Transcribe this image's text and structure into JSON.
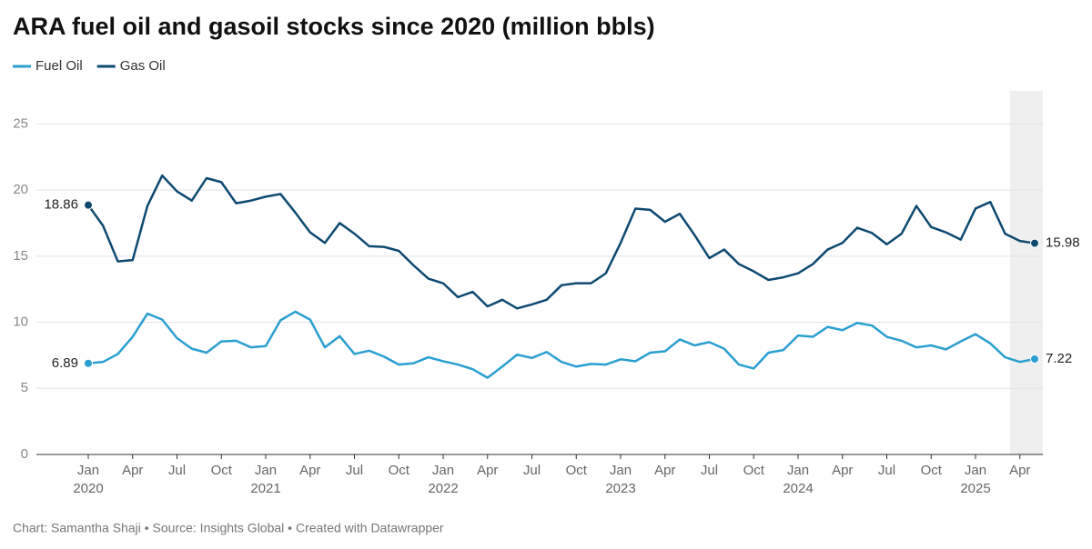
{
  "chart_data": {
    "type": "line",
    "title": "ARA fuel oil and gasoil stocks since 2020 (million bbls)",
    "footer": "Chart: Samantha Shaji • Source: Insights Global • Created with Datawrapper",
    "x": [
      "2020-01",
      "2020-02",
      "2020-03",
      "2020-04",
      "2020-05",
      "2020-06",
      "2020-07",
      "2020-08",
      "2020-09",
      "2020-10",
      "2020-11",
      "2020-12",
      "2021-01",
      "2021-02",
      "2021-03",
      "2021-04",
      "2021-05",
      "2021-06",
      "2021-07",
      "2021-08",
      "2021-09",
      "2021-10",
      "2021-11",
      "2021-12",
      "2022-01",
      "2022-02",
      "2022-03",
      "2022-04",
      "2022-05",
      "2022-06",
      "2022-07",
      "2022-08",
      "2022-09",
      "2022-10",
      "2022-11",
      "2022-12",
      "2023-01",
      "2023-02",
      "2023-03",
      "2023-04",
      "2023-05",
      "2023-06",
      "2023-07",
      "2023-08",
      "2023-09",
      "2023-10",
      "2023-11",
      "2023-12",
      "2024-01",
      "2024-02",
      "2024-03",
      "2024-04",
      "2024-05",
      "2024-06",
      "2024-07",
      "2024-08",
      "2024-09",
      "2024-10",
      "2024-11",
      "2024-12",
      "2025-01",
      "2025-02",
      "2025-03",
      "2025-04",
      "2025-05"
    ],
    "series": [
      {
        "name": "Fuel Oil",
        "color": "#2a9fd0",
        "values": [
          6.89,
          7.0,
          7.6,
          8.9,
          10.65,
          10.2,
          8.8,
          8.0,
          7.7,
          8.55,
          8.6,
          8.1,
          8.2,
          10.15,
          10.8,
          10.2,
          8.1,
          8.95,
          7.6,
          7.85,
          7.4,
          6.8,
          6.9,
          7.35,
          7.05,
          6.8,
          6.45,
          5.8,
          6.65,
          7.55,
          7.3,
          7.75,
          7.0,
          6.65,
          6.85,
          6.8,
          7.2,
          7.05,
          7.7,
          7.8,
          8.7,
          8.25,
          8.5,
          8.0,
          6.8,
          6.5,
          7.7,
          7.9,
          9.0,
          8.9,
          9.65,
          9.4,
          9.95,
          9.75,
          8.9,
          8.6,
          8.1,
          8.25,
          7.95,
          8.55,
          9.1,
          8.4,
          7.35,
          7.0,
          7.22
        ]
      },
      {
        "name": "Gas Oil",
        "color": "#0d4a70",
        "values": [
          18.86,
          17.3,
          14.6,
          14.7,
          18.8,
          21.1,
          19.9,
          19.2,
          20.9,
          20.6,
          19.0,
          19.2,
          19.5,
          19.7,
          18.3,
          16.8,
          16.0,
          17.5,
          16.7,
          15.75,
          15.7,
          15.4,
          14.3,
          13.3,
          12.95,
          11.9,
          12.3,
          11.2,
          11.7,
          11.05,
          11.35,
          11.7,
          12.8,
          12.95,
          12.95,
          13.7,
          16.0,
          18.6,
          18.5,
          17.6,
          18.2,
          16.6,
          14.85,
          15.5,
          14.4,
          13.85,
          13.2,
          13.4,
          13.7,
          14.4,
          15.5,
          16.0,
          17.15,
          16.75,
          15.9,
          16.7,
          18.8,
          17.2,
          16.8,
          16.25,
          18.6,
          19.1,
          16.7,
          16.15,
          15.98
        ]
      }
    ],
    "xticks": [
      {
        "value": "2020-01",
        "label": "Jan",
        "year": "2020"
      },
      {
        "value": "2020-04",
        "label": "Apr"
      },
      {
        "value": "2020-07",
        "label": "Jul"
      },
      {
        "value": "2020-10",
        "label": "Oct"
      },
      {
        "value": "2021-01",
        "label": "Jan",
        "year": "2021"
      },
      {
        "value": "2021-04",
        "label": "Apr"
      },
      {
        "value": "2021-07",
        "label": "Jul"
      },
      {
        "value": "2021-10",
        "label": "Oct"
      },
      {
        "value": "2022-01",
        "label": "Jan",
        "year": "2022"
      },
      {
        "value": "2022-04",
        "label": "Apr"
      },
      {
        "value": "2022-07",
        "label": "Jul"
      },
      {
        "value": "2022-10",
        "label": "Oct"
      },
      {
        "value": "2023-01",
        "label": "Jan",
        "year": "2023"
      },
      {
        "value": "2023-04",
        "label": "Apr"
      },
      {
        "value": "2023-07",
        "label": "Jul"
      },
      {
        "value": "2023-10",
        "label": "Oct"
      },
      {
        "value": "2024-01",
        "label": "Jan",
        "year": "2024"
      },
      {
        "value": "2024-04",
        "label": "Apr"
      },
      {
        "value": "2024-07",
        "label": "Jul"
      },
      {
        "value": "2024-10",
        "label": "Oct"
      },
      {
        "value": "2025-01",
        "label": "Jan",
        "year": "2025"
      },
      {
        "value": "2025-04",
        "label": "Apr"
      }
    ],
    "ylim": [
      0,
      27.5
    ],
    "yticks": [
      0,
      5,
      10,
      15,
      20,
      25
    ],
    "grid": true,
    "legend": "top-left",
    "highlight": "2025-04"
  }
}
